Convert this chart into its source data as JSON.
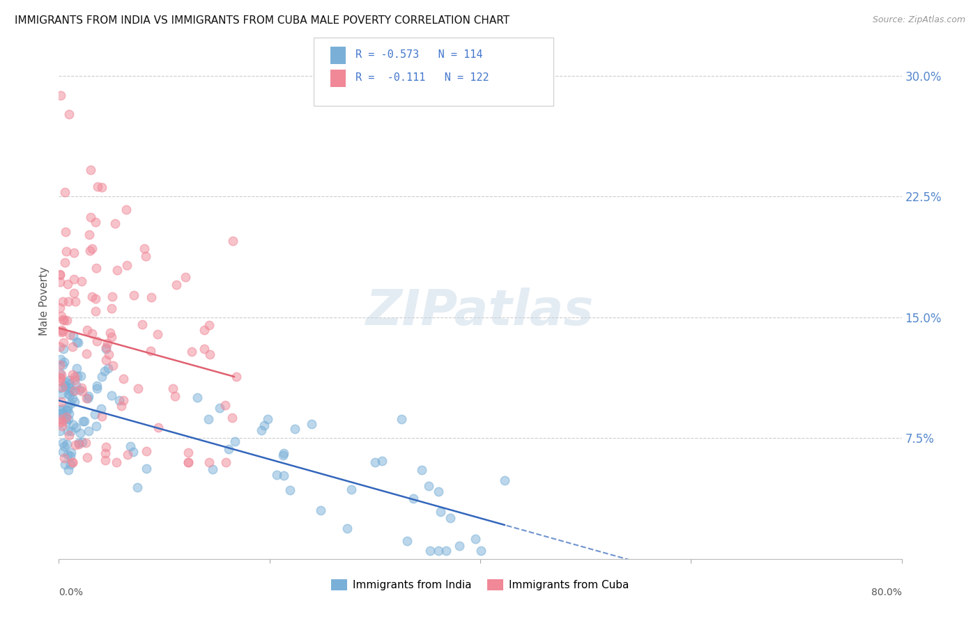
{
  "title": "IMMIGRANTS FROM INDIA VS IMMIGRANTS FROM CUBA MALE POVERTY CORRELATION CHART",
  "source": "Source: ZipAtlas.com",
  "ylabel": "Male Poverty",
  "yticks": [
    0.0,
    0.075,
    0.15,
    0.225,
    0.3
  ],
  "ytick_labels": [
    "",
    "7.5%",
    "15.0%",
    "22.5%",
    "30.0%"
  ],
  "xlim": [
    0.0,
    0.8
  ],
  "ylim": [
    0.0,
    0.32
  ],
  "india_color": "#7ab0d8",
  "cuba_color": "#f08898",
  "india_line_color": "#3366bb",
  "cuba_line_color": "#e06070",
  "watermark_color": "#c8d8e8",
  "background_color": "#ffffff",
  "grid_color": "#cccccc",
  "title_color": "#222222",
  "axis_label_color": "#5588cc",
  "legend_text_color": "#4477cc",
  "india_label": "Immigrants from India",
  "cuba_label": "Immigrants from Cuba",
  "india_R": "-0.573",
  "india_N": "114",
  "cuba_R": " -0.111",
  "cuba_N": "122"
}
